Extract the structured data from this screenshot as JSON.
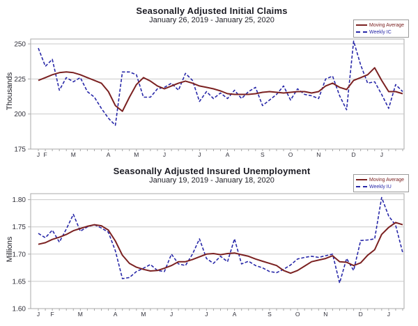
{
  "page": {
    "background": "#ffffff"
  },
  "colors": {
    "moving_average": "#7b2121",
    "weekly_line": "#2727a8",
    "grid": "#c9c9c9",
    "plot_border": "#a8a8a8",
    "tick_text": "#30303a",
    "title_text": "#1c1c24"
  },
  "chart_data": [
    {
      "type": "line",
      "title": "Seasonally Adjusted Initial Claims",
      "subtitle": "January 26, 2019 - January 25, 2020",
      "ylabel": "Thousands",
      "ylim": [
        175,
        253.5
      ],
      "ytick_values": [
        175,
        200,
        225,
        250
      ],
      "ytick_labels": [
        "175",
        "200",
        "225",
        "250"
      ],
      "grid": true,
      "legend_position": "top-right",
      "x_unit": "week",
      "n_weeks": 53,
      "month_tick_labels": [
        "J",
        "F",
        "M",
        "A",
        "M",
        "J",
        "J",
        "A",
        "S",
        "O",
        "N",
        "D",
        "J"
      ],
      "month_tick_weeks": [
        1,
        2,
        6,
        11,
        15,
        19,
        24,
        28,
        33,
        37,
        41,
        46,
        50
      ],
      "series": [
        {
          "name": "Moving Average",
          "color": "#7b2121",
          "style": "solid",
          "values": [
            224,
            226,
            228,
            229.5,
            230,
            229.5,
            228,
            226,
            224,
            222,
            216,
            206,
            202,
            212,
            221,
            226,
            223.5,
            220,
            218,
            220,
            222,
            223.5,
            222,
            220,
            219,
            218,
            216.5,
            214.5,
            214,
            214,
            214,
            214.5,
            215.5,
            216,
            215.5,
            215,
            215.5,
            216,
            216,
            215,
            216,
            220,
            222,
            219,
            217.5,
            224,
            226,
            228,
            233,
            224,
            216,
            216,
            214.5
          ]
        },
        {
          "name": "Weekly IC",
          "color": "#2727a8",
          "style": "dashed",
          "values": [
            247,
            234,
            239,
            217,
            226,
            223,
            226,
            216,
            212,
            204,
            197,
            192,
            230,
            230,
            228,
            212,
            212,
            218,
            219,
            222,
            217,
            229,
            224,
            209,
            216,
            211,
            215,
            211,
            217,
            211,
            216,
            219,
            206,
            210,
            214,
            220,
            210,
            218,
            214,
            213,
            211,
            225,
            227,
            213,
            203,
            252,
            235,
            222,
            223,
            214,
            204,
            221,
            216
          ]
        }
      ]
    },
    {
      "type": "line",
      "title": "Seasonally Adjusted Insured Unemployment",
      "subtitle": "January 19, 2019 - January 18, 2020",
      "ylabel": "Millions",
      "ylim": [
        1.6,
        1.811
      ],
      "ytick_values": [
        1.6,
        1.65,
        1.7,
        1.75,
        1.8
      ],
      "ytick_labels": [
        "1.60",
        "1.65",
        "1.70",
        "1.75",
        "1.80"
      ],
      "grid": true,
      "legend_position": "top-right",
      "x_unit": "week",
      "n_weeks": 53,
      "month_tick_labels": [
        "J",
        "F",
        "M",
        "A",
        "M",
        "J",
        "J",
        "A",
        "S",
        "O",
        "N",
        "D",
        "J"
      ],
      "month_tick_weeks": [
        1,
        3,
        7,
        12,
        16,
        20,
        25,
        29,
        34,
        38,
        42,
        47,
        51
      ],
      "series": [
        {
          "name": "Moving Average",
          "color": "#7b2121",
          "style": "solid",
          "values": [
            1.718,
            1.721,
            1.727,
            1.731,
            1.736,
            1.743,
            1.747,
            1.751,
            1.754,
            1.752,
            1.744,
            1.724,
            1.698,
            1.683,
            1.676,
            1.672,
            1.669,
            1.67,
            1.674,
            1.679,
            1.686,
            1.686,
            1.69,
            1.695,
            1.7,
            1.701,
            1.699,
            1.701,
            1.702,
            1.699,
            1.696,
            1.691,
            1.687,
            1.683,
            1.679,
            1.67,
            1.665,
            1.67,
            1.678,
            1.686,
            1.689,
            1.692,
            1.697,
            1.686,
            1.685,
            1.679,
            1.684,
            1.698,
            1.708,
            1.736,
            1.749,
            1.758,
            1.754
          ]
        },
        {
          "name": "Weekly IU",
          "color": "#2727a8",
          "style": "dashed",
          "values": [
            1.738,
            1.73,
            1.744,
            1.722,
            1.746,
            1.773,
            1.742,
            1.75,
            1.754,
            1.748,
            1.74,
            1.706,
            1.655,
            1.657,
            1.668,
            1.674,
            1.681,
            1.67,
            1.668,
            1.7,
            1.682,
            1.679,
            1.7,
            1.728,
            1.692,
            1.683,
            1.696,
            1.686,
            1.728,
            1.682,
            1.687,
            1.679,
            1.675,
            1.668,
            1.666,
            1.672,
            1.68,
            1.691,
            1.694,
            1.696,
            1.694,
            1.697,
            1.7,
            1.647,
            1.692,
            1.67,
            1.725,
            1.726,
            1.728,
            1.804,
            1.77,
            1.753,
            1.703
          ]
        }
      ]
    }
  ]
}
